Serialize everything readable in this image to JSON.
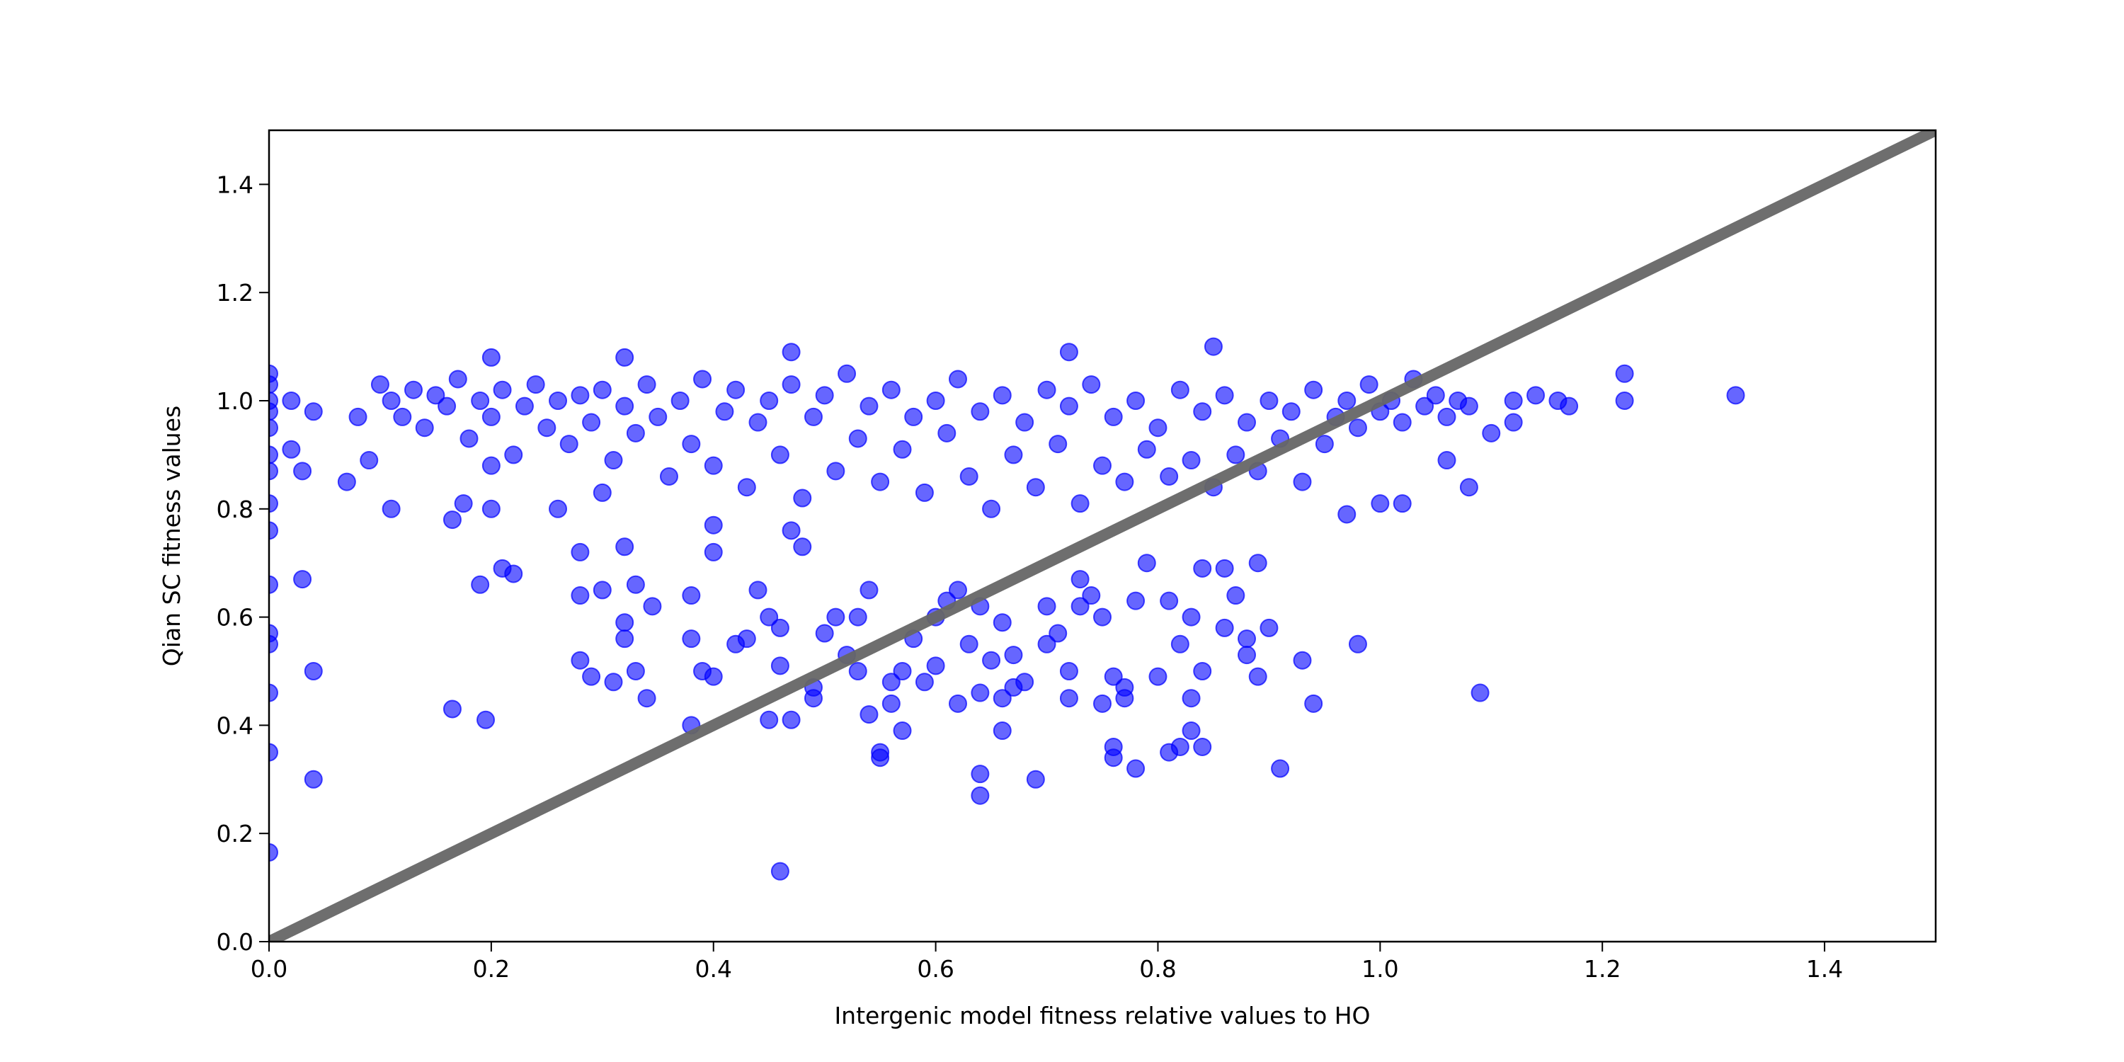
{
  "chart_data": {
    "type": "scatter",
    "x_label": "Intergenic model fitness relative values to HO",
    "y_label": "Qian  SC fitness values",
    "color": "#0000ff",
    "xlim": [
      0,
      1.5
    ],
    "ylim": [
      0,
      1.5
    ],
    "xticks": [
      {
        "value": 0,
        "label": "0.0"
      },
      0.2,
      0.4,
      0.6,
      0.8,
      {
        "value": 1,
        "label": "1.0"
      },
      1.2,
      1.4
    ],
    "yticks": [
      {
        "value": 0,
        "label": "0.0"
      },
      0.2,
      0.4,
      0.6,
      0.8,
      {
        "value": 1,
        "label": "1.0"
      },
      1.2,
      1.4
    ],
    "grid": false,
    "reference_line": {
      "x": [
        0,
        1.5
      ],
      "values": [
        0,
        1.5
      ],
      "color": "#666666"
    },
    "x": [
      0,
      0,
      0,
      0,
      0,
      0,
      0,
      0,
      0,
      0,
      0,
      0,
      0,
      0,
      0,
      0.02,
      0.02,
      0.03,
      0.03,
      0.04,
      0.04,
      0.04,
      0.07,
      0.08,
      0.09,
      0.1,
      0.11,
      0.165,
      0.165,
      0.175,
      0.19,
      0.195,
      0.2,
      0.2,
      0.21,
      0.22,
      0.26,
      0.28,
      0.28,
      0.28,
      0.29,
      0.3,
      0.3,
      0.31,
      0.32,
      0.32,
      0.32,
      0.33,
      0.33,
      0.34,
      0.345,
      0.38,
      0.38,
      0.38,
      0.39,
      0.4,
      0.4,
      0.4,
      0.42,
      0.43,
      0.44,
      0.45,
      0.45,
      0.46,
      0.46,
      0.47,
      0.46,
      0.47,
      0.48,
      0.49,
      0.49,
      0.5,
      0.51,
      0.52,
      0.53,
      0.53,
      0.54,
      0.54,
      0.55,
      0.55,
      0.56,
      0.56,
      0.57,
      0.57,
      0.58,
      0.59,
      0.6,
      0.6,
      0.61,
      0.62,
      0.62,
      0.63,
      0.64,
      0.64,
      0.64,
      0.64,
      0.65,
      0.66,
      0.66,
      0.66,
      0.67,
      0.67,
      0.68,
      0.69,
      0.7,
      0.7,
      0.71,
      0.72,
      0.72,
      0.73,
      0.73,
      0.74,
      0.75,
      0.75,
      0.76,
      0.76,
      0.76,
      0.77,
      0.77,
      0.78,
      0.78,
      0.79,
      0.8,
      0.81,
      0.81,
      0.82,
      0.82,
      0.83,
      0.83,
      0.83,
      0.84,
      0.84,
      0.84,
      0.86,
      0.86,
      0.87,
      0.88,
      0.88,
      0.89,
      0.89,
      0.9,
      0.91,
      0.93,
      0.94,
      0.98,
      1.09,
      0.97,
      1.0,
      1.02,
      1.08,
      1.06,
      1.1,
      1.12,
      1.12,
      1.14,
      1.16,
      1.17,
      1.22,
      1.22,
      1.32,
      0.85,
      0.72,
      0.47,
      0.2,
      0.32,
      0.11,
      0.12,
      0.13,
      0.14,
      0.15,
      0.16,
      0.17,
      0.18,
      0.19,
      0.2,
      0.21,
      0.22,
      0.23,
      0.24,
      0.25,
      0.26,
      0.27,
      0.28,
      0.29,
      0.3,
      0.31,
      0.32,
      0.33,
      0.34,
      0.35,
      0.36,
      0.37,
      0.38,
      0.39,
      0.4,
      0.41,
      0.42,
      0.43,
      0.44,
      0.45,
      0.46,
      0.47,
      0.48,
      0.49,
      0.5,
      0.51,
      0.52,
      0.53,
      0.54,
      0.55,
      0.56,
      0.57,
      0.58,
      0.59,
      0.6,
      0.61,
      0.62,
      0.63,
      0.64,
      0.65,
      0.66,
      0.67,
      0.68,
      0.69,
      0.7,
      0.71,
      0.72,
      0.73,
      0.74,
      0.75,
      0.76,
      0.77,
      0.78,
      0.79,
      0.8,
      0.81,
      0.82,
      0.83,
      0.84,
      0.85,
      0.86,
      0.87,
      0.88,
      0.89,
      0.9,
      0.91,
      0.92,
      0.93,
      0.94,
      0.95,
      0.96,
      0.97,
      0.98,
      0.99,
      1.0,
      1.01,
      1.02,
      1.03,
      1.04,
      1.05,
      1.06,
      1.07,
      1.08
    ],
    "values": [
      1.05,
      1.03,
      1.0,
      0.98,
      0.95,
      0.9,
      0.87,
      0.81,
      0.76,
      0.66,
      0.57,
      0.55,
      0.46,
      0.35,
      0.165,
      1.0,
      0.91,
      0.87,
      0.67,
      0.98,
      0.5,
      0.3,
      0.85,
      0.97,
      0.89,
      1.03,
      0.8,
      0.78,
      0.43,
      0.81,
      0.66,
      0.41,
      0.88,
      0.8,
      0.69,
      0.68,
      0.8,
      0.72,
      0.64,
      0.52,
      0.49,
      0.83,
      0.65,
      0.48,
      0.56,
      0.59,
      0.73,
      0.66,
      0.5,
      0.45,
      0.62,
      0.64,
      0.56,
      0.4,
      0.5,
      0.49,
      0.72,
      0.77,
      0.55,
      0.56,
      0.65,
      0.6,
      0.41,
      0.58,
      0.51,
      0.41,
      0.13,
      0.76,
      0.73,
      0.45,
      0.47,
      0.57,
      0.6,
      0.53,
      0.5,
      0.6,
      0.65,
      0.42,
      0.35,
      0.34,
      0.44,
      0.48,
      0.39,
      0.5,
      0.56,
      0.48,
      0.51,
      0.6,
      0.63,
      0.44,
      0.65,
      0.55,
      0.46,
      0.62,
      0.27,
      0.31,
      0.52,
      0.45,
      0.39,
      0.59,
      0.47,
      0.53,
      0.48,
      0.3,
      0.62,
      0.55,
      0.57,
      0.45,
      0.5,
      0.62,
      0.67,
      0.64,
      0.6,
      0.44,
      0.49,
      0.36,
      0.34,
      0.47,
      0.45,
      0.63,
      0.32,
      0.7,
      0.49,
      0.63,
      0.35,
      0.36,
      0.55,
      0.39,
      0.6,
      0.45,
      0.69,
      0.5,
      0.36,
      0.58,
      0.69,
      0.64,
      0.53,
      0.56,
      0.49,
      0.7,
      0.58,
      0.32,
      0.52,
      0.44,
      0.55,
      0.46,
      0.79,
      0.81,
      0.81,
      0.84,
      0.89,
      0.94,
      0.96,
      1.0,
      1.01,
      1.0,
      0.99,
      1.0,
      1.05,
      1.01,
      1.1,
      1.09,
      1.09,
      1.08,
      1.08,
      1.0,
      0.97,
      1.02,
      0.95,
      1.01,
      0.99,
      1.04,
      0.93,
      1.0,
      0.97,
      1.02,
      0.9,
      0.99,
      1.03,
      0.95,
      1.0,
      0.92,
      1.01,
      0.96,
      1.02,
      0.89,
      0.99,
      0.94,
      1.03,
      0.97,
      0.86,
      1.0,
      0.92,
      1.04,
      0.88,
      0.98,
      1.02,
      0.84,
      0.96,
      1.0,
      0.9,
      1.03,
      0.82,
      0.97,
      1.01,
      0.87,
      1.05,
      0.93,
      0.99,
      0.85,
      1.02,
      0.91,
      0.97,
      0.83,
      1.0,
      0.94,
      1.04,
      0.86,
      0.98,
      0.8,
      1.01,
      0.9,
      0.96,
      0.84,
      1.02,
      0.92,
      0.99,
      0.81,
      1.03,
      0.88,
      0.97,
      0.85,
      1.0,
      0.91,
      0.95,
      0.86,
      1.02,
      0.89,
      0.98,
      0.84,
      1.01,
      0.9,
      0.96,
      0.87,
      1.0,
      0.93,
      0.98,
      0.85,
      1.02,
      0.92,
      0.97,
      1.0,
      0.95,
      1.03,
      0.98,
      1.0,
      0.96,
      1.04,
      0.99,
      1.01,
      0.97,
      1.0,
      0.99
    ]
  }
}
